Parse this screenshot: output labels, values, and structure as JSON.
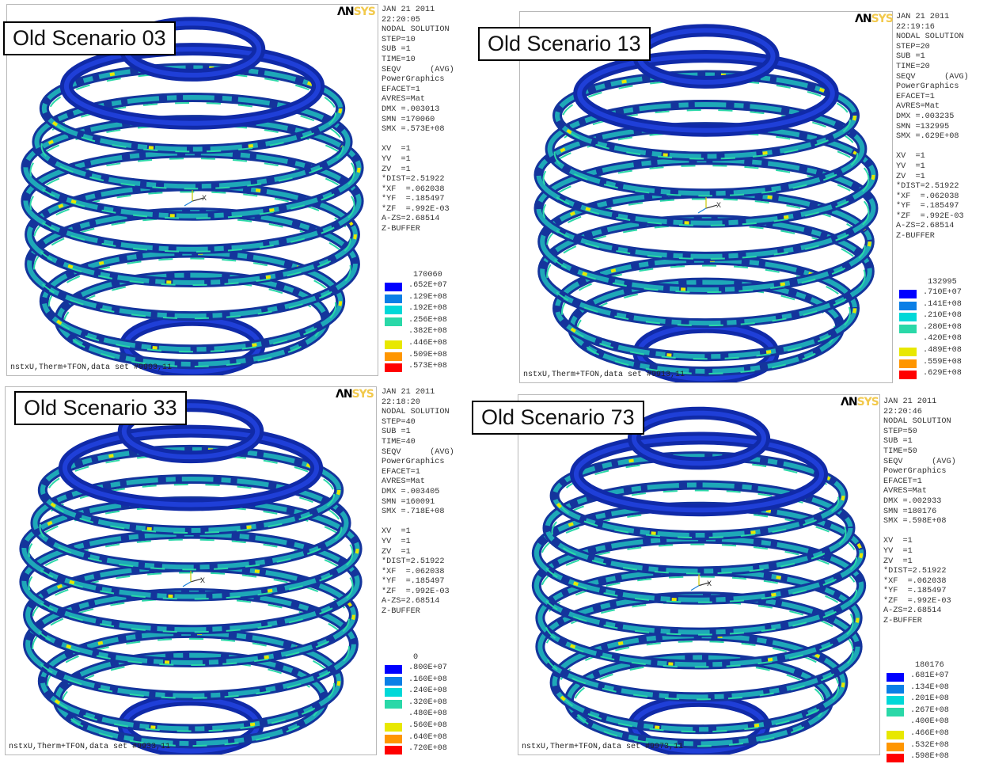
{
  "logo": {
    "an": "ΛN",
    "sys": "SYS"
  },
  "colors": [
    "#0000ff",
    "#0a7fe6",
    "#00d8d8",
    "#2ad8a8",
    "#e8e800",
    "#ff9600",
    "#ff0000"
  ],
  "panels": [
    {
      "label": "Old Scenario 03",
      "info": "JAN 21 2011\n22:20:05\nNODAL SOLUTION\nSTEP=10\nSUB =1\nTIME=10\nSEQV      (AVG)\nPowerGraphics\nEFACET=1\nAVRES=Mat\nDMX =.003013\nSMN =170060\nSMX =.573E+08\n\nXV  =1\nYV  =1\nZV  =1\n*DIST=2.51922\n*XF  =.062038\n*YF  =.185497\n*ZF  =.992E-03\nA-ZS=2.68514\nZ-BUFFER",
      "legend_min": "170060",
      "legend": [
        ".652E+07",
        ".129E+08",
        ".192E+08",
        ".256E+08",
        ".382E+08",
        ".446E+08",
        ".509E+08",
        ".573E+08"
      ],
      "footer": "nstxU,Therm+TFON,data set #9903,11"
    },
    {
      "label": "Old Scenario 13",
      "info": "JAN 21 2011\n22:19:16\nNODAL SOLUTION\nSTEP=20\nSUB =1\nTIME=20\nSEQV      (AVG)\nPowerGraphics\nEFACET=1\nAVRES=Mat\nDMX =.003235\nSMN =132995\nSMX =.629E+08\n\nXV  =1\nYV  =1\nZV  =1\n*DIST=2.51922\n*XF  =.062038\n*YF  =.185497\n*ZF  =.992E-03\nA-ZS=2.68514\nZ-BUFFER",
      "legend_min": "132995",
      "legend": [
        ".710E+07",
        ".141E+08",
        ".210E+08",
        ".280E+08",
        ".420E+08",
        ".489E+08",
        ".559E+08",
        ".629E+08"
      ],
      "footer": "nstxU,Therm+TFON,data set #9913,11"
    },
    {
      "label": "Old Scenario 33",
      "info": "JAN 21 2011\n22:18:20\nNODAL SOLUTION\nSTEP=40\nSUB =1\nTIME=40\nSEQV      (AVG)\nPowerGraphics\nEFACET=1\nAVRES=Mat\nDMX =.003405\nSMN =160091\nSMX =.718E+08\n\nXV  =1\nYV  =1\nZV  =1\n*DIST=2.51922\n*XF  =.062038\n*YF  =.185497\n*ZF  =.992E-03\nA-ZS=2.68514\nZ-BUFFER",
      "legend_min": "0",
      "legend": [
        ".800E+07",
        ".160E+08",
        ".240E+08",
        ".320E+08",
        ".480E+08",
        ".560E+08",
        ".640E+08",
        ".720E+08"
      ],
      "footer": "nstxU,Therm+TFON,data set #9933,11"
    },
    {
      "label": "Old Scenario 73",
      "info": "JAN 21 2011\n22:20:46\nNODAL SOLUTION\nSTEP=50\nSUB =1\nTIME=50\nSEQV      (AVG)\nPowerGraphics\nEFACET=1\nAVRES=Mat\nDMX =.002933\nSMN =180176\nSMX =.598E+08\n\nXV  =1\nYV  =1\nZV  =1\n*DIST=2.51922\n*XF  =.062038\n*YF  =.185497\n*ZF  =.992E-03\nA-ZS=2.68514\nZ-BUFFER",
      "legend_min": "180176",
      "legend": [
        ".681E+07",
        ".134E+08",
        ".201E+08",
        ".267E+08",
        ".400E+08",
        ".466E+08",
        ".532E+08",
        ".598E+08"
      ],
      "footer": "nstxU,Therm+TFON,data set #9973,11"
    }
  ],
  "axis_label": "X"
}
